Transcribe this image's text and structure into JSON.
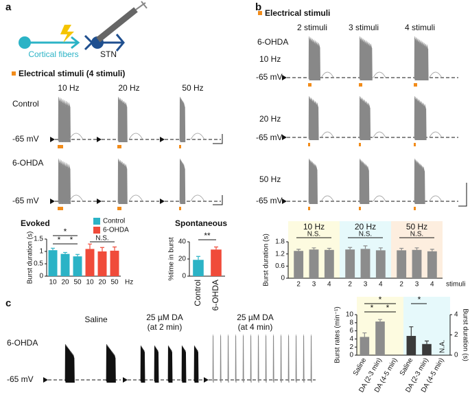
{
  "figure": {
    "panel_labels": [
      "a",
      "b",
      "c"
    ],
    "a": {
      "cortical_fibers": "Cortical fibers",
      "stn": "STN",
      "stimuli": "Electrical stimuli (4 stimuli)",
      "frequencies": [
        "10 Hz",
        "20 Hz",
        "50 Hz"
      ],
      "conditions": [
        "Control",
        "6-OHDA"
      ],
      "potential": "-65 mV"
    },
    "b": {
      "stimuli": "Electrical stimuli",
      "counts": [
        "2 stimuli",
        "3 stimuli",
        "4 stimuli"
      ],
      "condition": "6-OHDA",
      "frequencies": [
        "10 Hz",
        "20 Hz",
        "50 Hz"
      ],
      "potential": "-65 mV"
    },
    "c": {
      "treatments": [
        {
          "drug": "Saline"
        },
        {
          "drug": "25 µM DA",
          "time": "(at 2 min)"
        },
        {
          "drug": "25 µM DA",
          "time": "(at 4 min)"
        }
      ],
      "condition": "6-OHDA",
      "potential": "-65 mV"
    }
  },
  "chart_data": [
    {
      "type": "bar",
      "title": "Evoked",
      "y_label": "Burst duration (s)",
      "x_unit": "Hz",
      "categories": [
        "10",
        "20",
        "50"
      ],
      "series": [
        {
          "name": "Control",
          "color": "#2bb3c6",
          "values": [
            1.05,
            0.9,
            0.8
          ],
          "errors": [
            0.08,
            0.06,
            0.08
          ]
        },
        {
          "name": "6-OHDA",
          "color": "#f04b3a",
          "values": [
            1.1,
            1.0,
            1.03
          ],
          "errors": [
            0.2,
            0.16,
            0.15
          ]
        }
      ],
      "ylim": [
        0,
        1.5
      ],
      "yticks": [
        0,
        0.5,
        1,
        1.5
      ],
      "annotations": [
        "*",
        "*",
        "*",
        "N.S."
      ]
    },
    {
      "type": "bar",
      "title": "Spontaneous",
      "y_label": "%time in burst",
      "categories": [
        "Control",
        "6-OHDA"
      ],
      "values": [
        19,
        31
      ],
      "errors": [
        4,
        3
      ],
      "colors": [
        "#2bb3c6",
        "#f04b3a"
      ],
      "ylim": [
        0,
        40
      ],
      "yticks": [
        0,
        20,
        40
      ],
      "annotations": [
        "**"
      ]
    },
    {
      "type": "bar",
      "y_label": "Burst duration (s)",
      "x_unit": "stimuli",
      "categories": [
        "2",
        "3",
        "4"
      ],
      "series": [
        {
          "name": "10 Hz",
          "color": "#8c8c8c",
          "values": [
            1.35,
            1.42,
            1.4
          ],
          "errors": [
            0.08,
            0.08,
            0.08
          ]
        },
        {
          "name": "20 Hz",
          "color": "#8c8c8c",
          "values": [
            1.42,
            1.45,
            1.38
          ],
          "errors": [
            0.1,
            0.15,
            0.12
          ]
        },
        {
          "name": "50 Hz",
          "color": "#8c8c8c",
          "values": [
            1.38,
            1.4,
            1.33
          ],
          "errors": [
            0.1,
            0.1,
            0.1
          ]
        }
      ],
      "band_colors": [
        "#fdfbe0",
        "#e6f9fb",
        "#fdeedf"
      ],
      "ylim": [
        0,
        1.8
      ],
      "yticks": [
        0,
        0.6,
        1.2,
        1.8
      ],
      "annotations": [
        "N.S.",
        "N.S.",
        "N.S."
      ]
    },
    {
      "type": "bar",
      "y_label": "Burst  rates (min⁻¹)",
      "y2_label": "Burst  duration (s)",
      "categories": [
        "Saline",
        "DA (2-3 min)",
        "DA (4-5 min)"
      ],
      "series": [
        {
          "color": "#8c8c8c",
          "axis": "y",
          "values": [
            4.5,
            8.3,
            0
          ],
          "errors": [
            1.0,
            0.5,
            null
          ]
        },
        {
          "color": "#3a3a3a",
          "axis": "y2",
          "values": [
            1.9,
            1.1,
            null
          ],
          "errors": [
            0.9,
            0.3,
            null
          ]
        }
      ],
      "band_colors": [
        "#fdfbe0",
        "#e6f9fb"
      ],
      "ylim": [
        0,
        10
      ],
      "yticks": [
        0,
        2,
        4,
        6,
        8,
        10
      ],
      "y2lim": [
        0,
        4
      ],
      "y2ticks": [
        0,
        2,
        4
      ],
      "annotations": [
        "*",
        "*",
        "*",
        "*",
        "N.A."
      ]
    }
  ]
}
